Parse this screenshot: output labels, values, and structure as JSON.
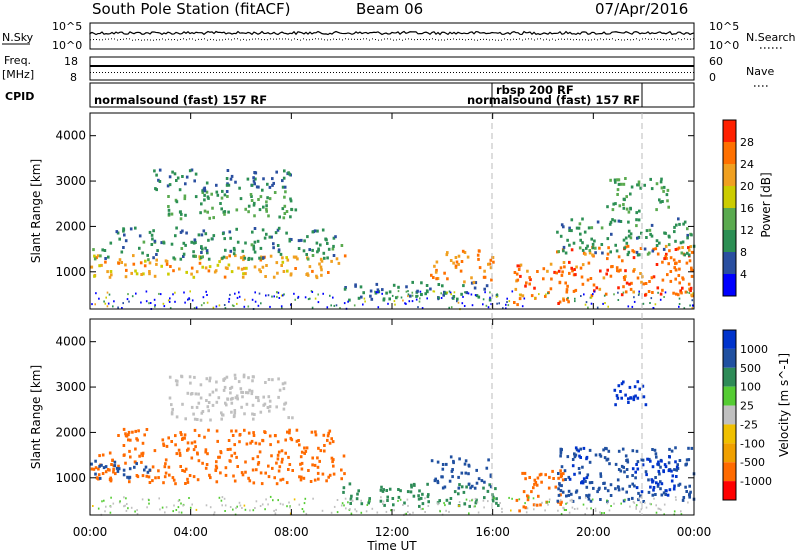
{
  "header": {
    "station": "South Pole Station (fitACF)",
    "beam": "Beam 06",
    "date": "07/Apr/2016"
  },
  "left_labels": {
    "nsky": "N.Sky",
    "freq": "Freq.",
    "freq_unit": "[MHz]",
    "cpid": "CPID"
  },
  "right_labels": {
    "nsearch": "N.Search",
    "nave": "Nave"
  },
  "noise_axis": {
    "left": [
      "10^5",
      "10^0"
    ],
    "right": [
      "10^5",
      "10^0"
    ]
  },
  "freq_axis": {
    "left": [
      "18",
      "8"
    ],
    "right": [
      "60",
      "0"
    ]
  },
  "cpid_segments": [
    {
      "label": "normalsound (fast) 157 RF"
    },
    {
      "label": "rbsp 200 RF"
    },
    {
      "label": "normalsound (fast) 157 RF"
    }
  ],
  "colors": {
    "power": [
      "#0000ff",
      "#2a4fa0",
      "#2c8f54",
      "#5aaa4f",
      "#cccc00",
      "#f0a020",
      "#ff7000",
      "#ff2000"
    ],
    "velocity": [
      "#ff0000",
      "#ff6a00",
      "#f0a000",
      "#f0c000",
      "#c0c0c0",
      "#55cc33",
      "#2e8b57",
      "#2050a0",
      "#0033cc"
    ]
  },
  "chart_data": [
    {
      "type": "heatmap",
      "title": "Power",
      "xlabel": "Time UT",
      "ylabel": "Slant Range [km]",
      "x_ticks": [
        "00:00",
        "04:00",
        "08:00",
        "12:00",
        "16:00",
        "20:00",
        "00:00"
      ],
      "y_ticks": [
        1000,
        2000,
        3000,
        4000
      ],
      "xlim_hours": [
        0,
        24
      ],
      "ylim_km": [
        180,
        4500
      ],
      "colorbar": {
        "label": "Power [dB]",
        "ticks": [
          4,
          8,
          12,
          16,
          20,
          24,
          28
        ],
        "range": [
          0,
          30
        ]
      },
      "regions": [
        {
          "t0": 0.0,
          "t1": 10.2,
          "r0": 900,
          "r1": 1400,
          "level": 22
        },
        {
          "t0": 0.0,
          "t1": 10.0,
          "r0": 1300,
          "r1": 1700,
          "level": 10
        },
        {
          "t0": 1.0,
          "t1": 9.8,
          "r0": 1700,
          "r1": 2000,
          "level": 9
        },
        {
          "t0": 3.0,
          "t1": 8.2,
          "r0": 2200,
          "r1": 2800,
          "level": 12
        },
        {
          "t0": 2.5,
          "t1": 8.0,
          "r0": 2800,
          "r1": 3300,
          "level": 8
        },
        {
          "t0": 10.0,
          "t1": 16.2,
          "r0": 400,
          "r1": 800,
          "level": 8
        },
        {
          "t0": 13.5,
          "t1": 16.0,
          "r0": 800,
          "r1": 1500,
          "level": 24
        },
        {
          "t0": 16.8,
          "t1": 19.0,
          "r0": 300,
          "r1": 1200,
          "level": 26
        },
        {
          "t0": 18.5,
          "t1": 24.0,
          "r0": 500,
          "r1": 1600,
          "level": 26
        },
        {
          "t0": 18.5,
          "t1": 24.0,
          "r0": 1400,
          "r1": 2200,
          "level": 10
        },
        {
          "t0": 20.5,
          "t1": 23.0,
          "r0": 2300,
          "r1": 3100,
          "level": 12
        }
      ]
    },
    {
      "type": "heatmap",
      "title": "Velocity",
      "xlabel": "Time UT",
      "ylabel": "Slant Range [km]",
      "x_ticks": [
        "00:00",
        "04:00",
        "08:00",
        "12:00",
        "16:00",
        "20:00",
        "00:00"
      ],
      "y_ticks": [
        1000,
        2000,
        3000,
        4000
      ],
      "xlim_hours": [
        0,
        24
      ],
      "ylim_km": [
        180,
        4500
      ],
      "colorbar": {
        "label": "Velocity [m s^-1]",
        "ticks": [
          1000,
          500,
          100,
          25,
          -25,
          -100,
          -500,
          -1000
        ]
      },
      "regions": [
        {
          "t0": 0.0,
          "t1": 10.2,
          "r0": 900,
          "r1": 1600,
          "level": -300
        },
        {
          "t0": 0.0,
          "t1": 2.5,
          "r0": 1000,
          "r1": 1400,
          "level": 200
        },
        {
          "t0": 1.0,
          "t1": 9.8,
          "r0": 1600,
          "r1": 2100,
          "level": -300
        },
        {
          "t0": 3.0,
          "t1": 8.2,
          "r0": 2300,
          "r1": 2800,
          "level": 0
        },
        {
          "t0": 3.0,
          "t1": 8.0,
          "r0": 2800,
          "r1": 3300,
          "level": 0
        },
        {
          "t0": 10.0,
          "t1": 16.2,
          "r0": 400,
          "r1": 900,
          "level": 150
        },
        {
          "t0": 13.5,
          "t1": 16.0,
          "r0": 800,
          "r1": 1500,
          "level": 300
        },
        {
          "t0": 16.8,
          "t1": 18.8,
          "r0": 300,
          "r1": 1200,
          "level": -300
        },
        {
          "t0": 18.5,
          "t1": 24.0,
          "r0": 500,
          "r1": 1700,
          "level": 200
        },
        {
          "t0": 21.5,
          "t1": 23.3,
          "r0": 600,
          "r1": 1500,
          "level": 1200
        },
        {
          "t0": 19.0,
          "t1": 19.8,
          "r0": 900,
          "r1": 1700,
          "level": 1000
        },
        {
          "t0": 20.8,
          "t1": 22.5,
          "r0": 2600,
          "r1": 3200,
          "level": 800
        }
      ]
    }
  ]
}
